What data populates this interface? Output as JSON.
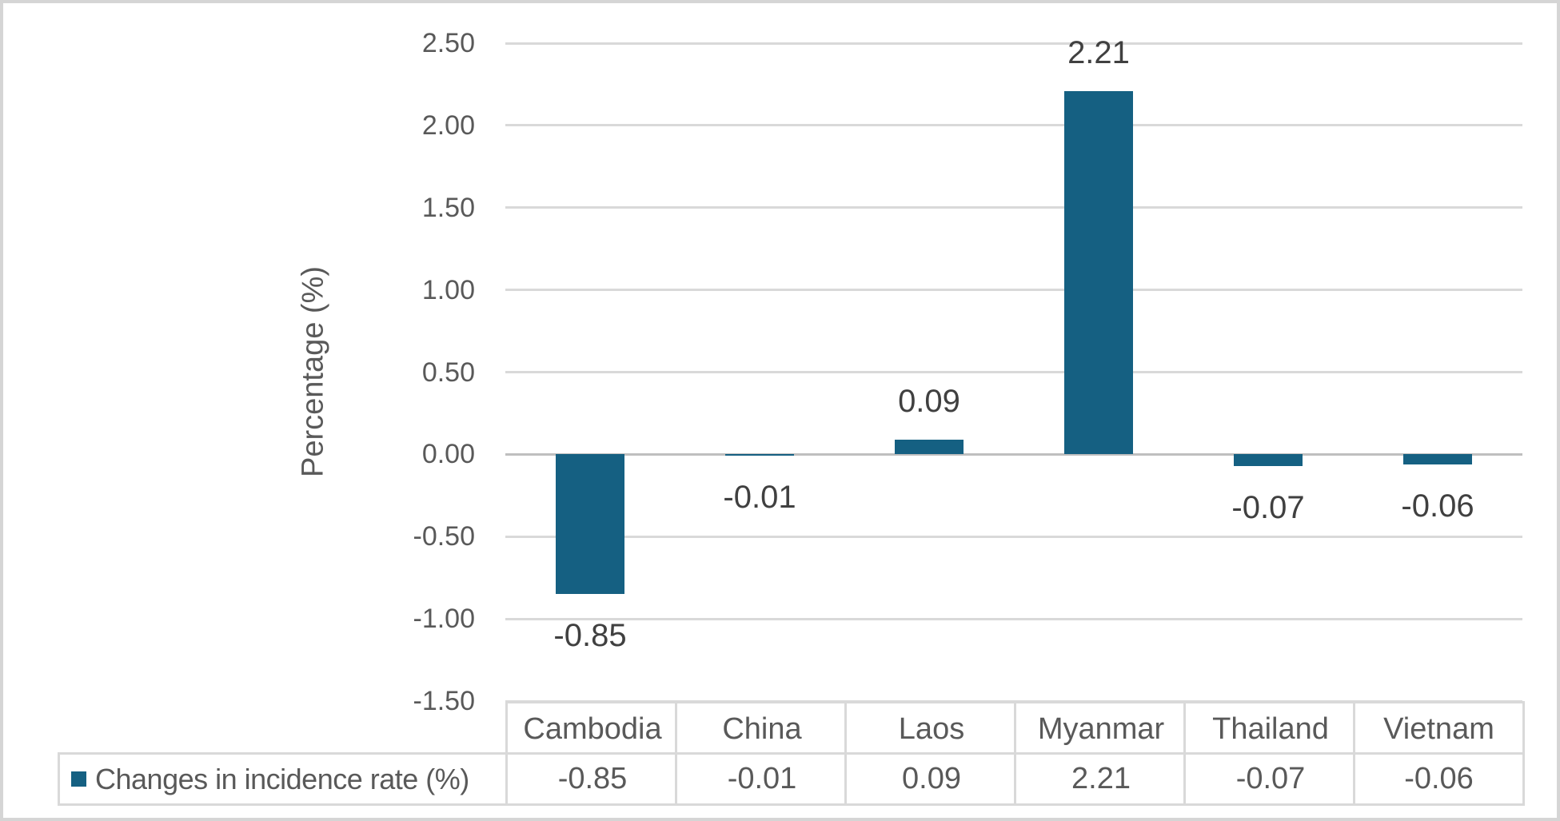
{
  "chart_data": {
    "type": "bar",
    "title": "",
    "categories": [
      "Cambodia",
      "China",
      "Laos",
      "Myanmar",
      "Thailand",
      "Vietnam"
    ],
    "series": [
      {
        "name": "Changes in incidence rate (%)",
        "values": [
          -0.85,
          -0.01,
          0.09,
          2.21,
          -0.07,
          -0.06
        ],
        "color": "#156082"
      }
    ],
    "data_labels": [
      "-0.85",
      "-0.01",
      "0.09",
      "2.21",
      "-0.07",
      "-0.06"
    ],
    "xlabel": "",
    "ylabel": "Percentage (%)",
    "ylim": [
      -1.5,
      2.5
    ],
    "y_ticks": [
      "2.50",
      "2.00",
      "1.50",
      "1.00",
      "0.50",
      "0.00",
      "-0.50",
      "-1.00",
      "-1.50"
    ],
    "grid": true,
    "legend_position": "bottom-data-table",
    "data_table": {
      "legend_label": "Changes in incidence rate (%)",
      "columns": [
        "Cambodia",
        "China",
        "Laos",
        "Myanmar",
        "Thailand",
        "Vietnam"
      ],
      "values": [
        "-0.85",
        "-0.01",
        "0.09",
        "2.21",
        "-0.07",
        "-0.06"
      ]
    }
  },
  "colors": {
    "bar": "#156082",
    "gridline": "#D9D9D9",
    "zero_line": "#BFBFBF",
    "axis_text": "#595959",
    "data_label_text": "#404040",
    "table_border": "#D9D9D9",
    "frame_border": "#D5D5D5"
  }
}
